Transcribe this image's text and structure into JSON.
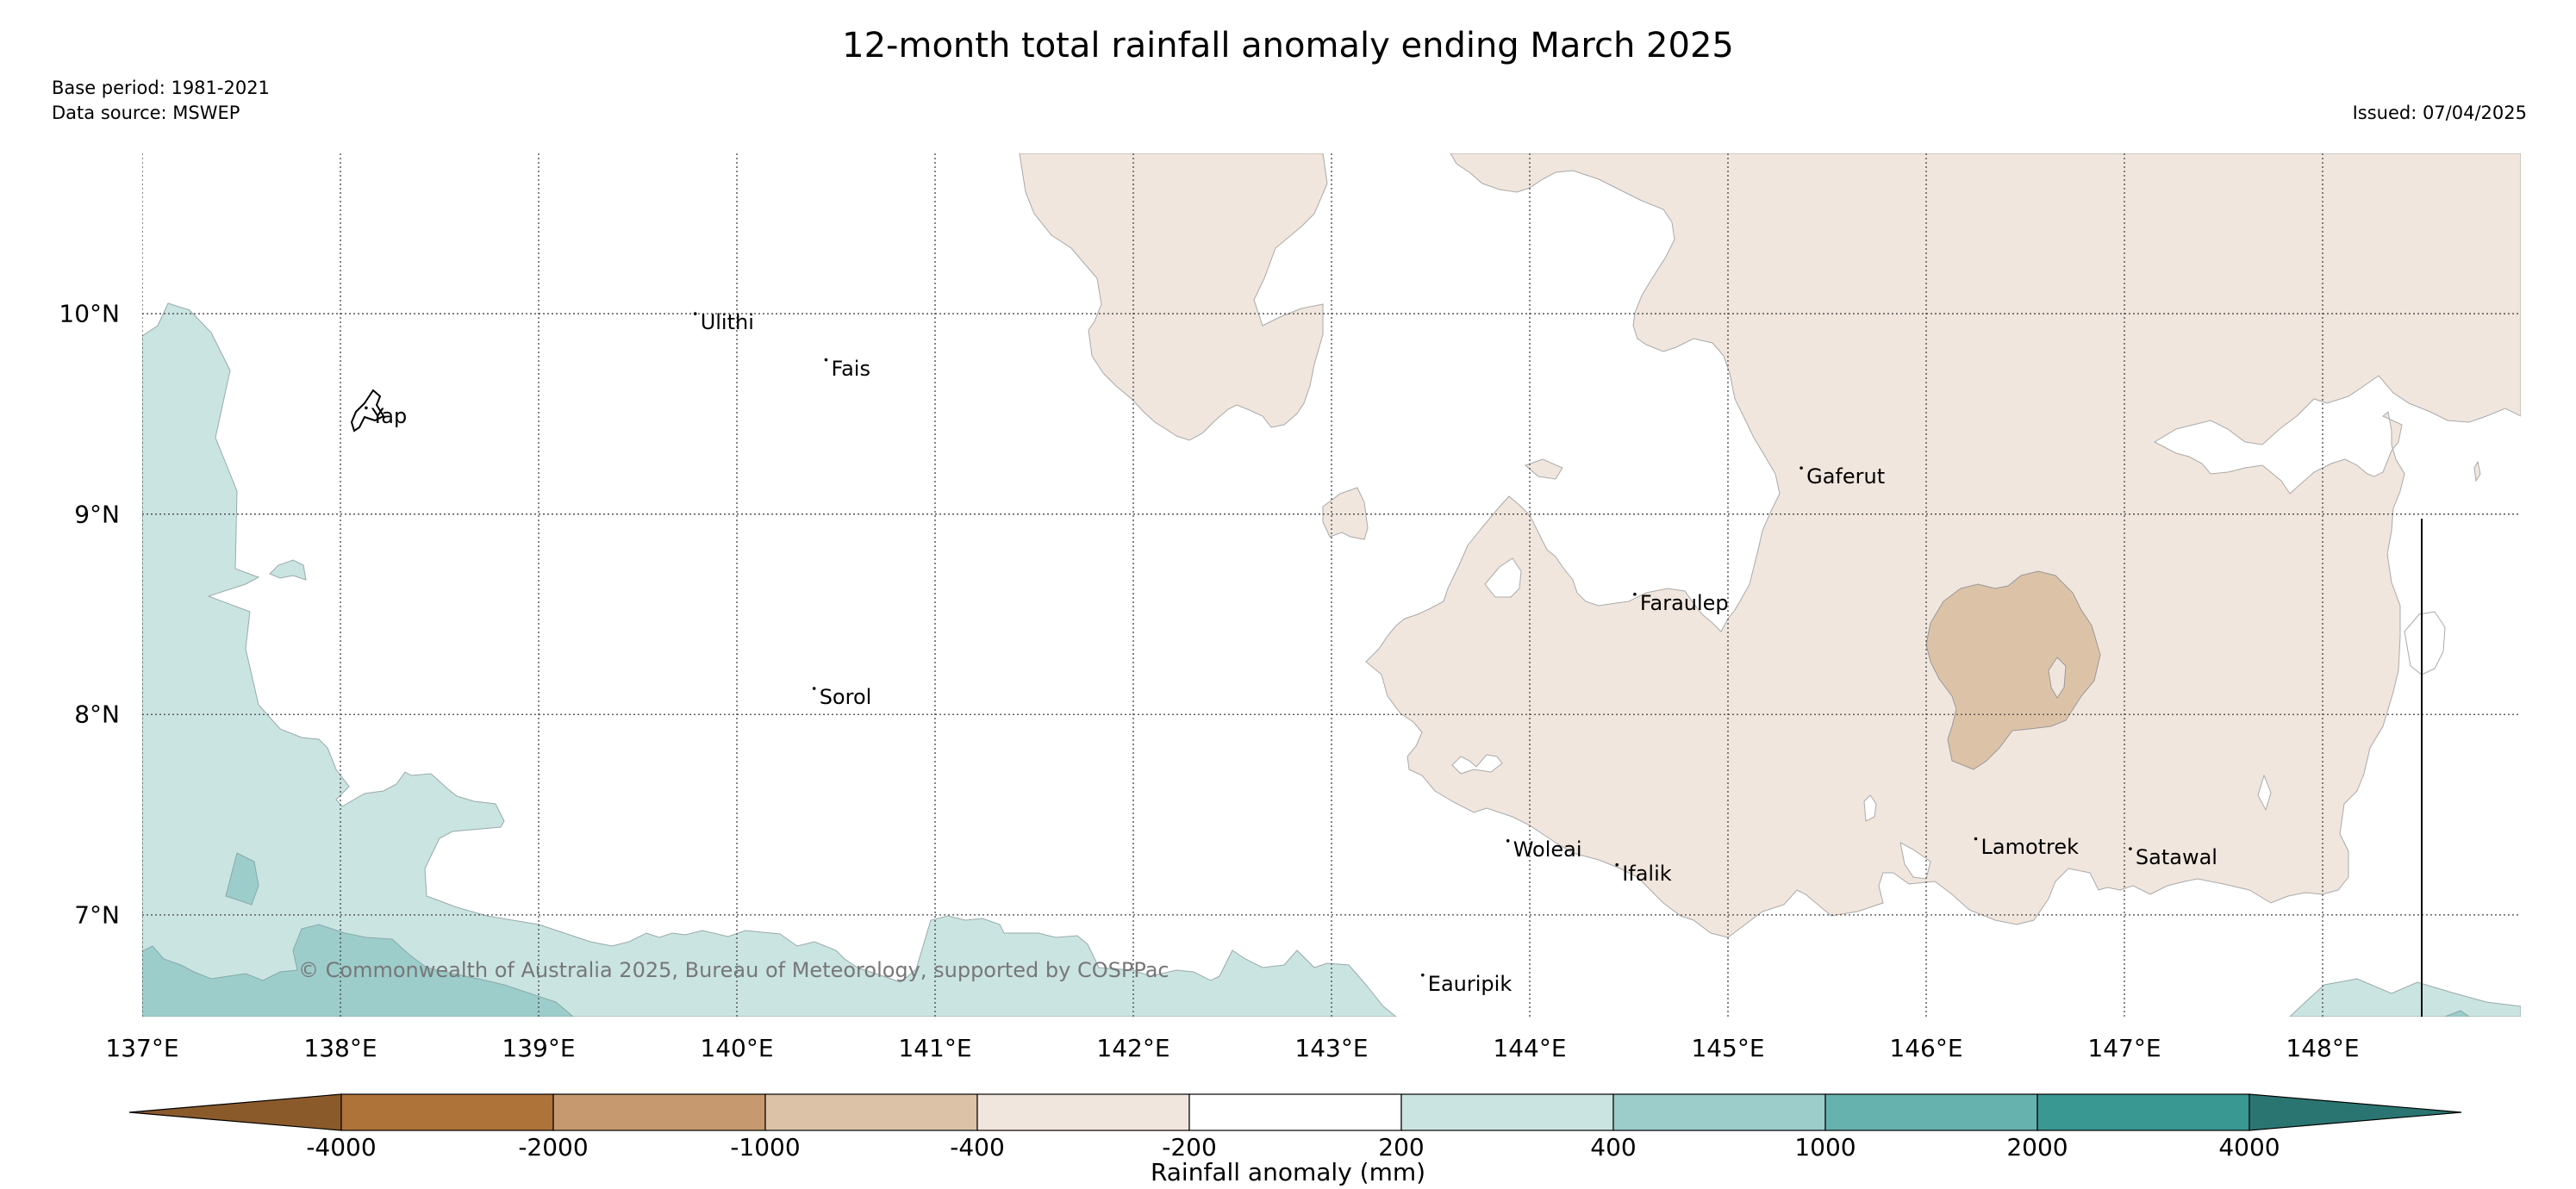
{
  "title": "12-month total rainfall anomaly ending March 2025",
  "base_period": "Base period: 1981-2021",
  "data_source": "Data source: MSWEP",
  "issued": "Issued: 07/04/2025",
  "copyright": "© Commonwealth of Australia 2025, Bureau of Meteorology, supported by COSPPac",
  "map": {
    "lon_range": [
      137,
      149
    ],
    "lat_range": [
      6.5,
      10.8
    ],
    "longitudes": [
      "137°E",
      "138°E",
      "139°E",
      "140°E",
      "141°E",
      "142°E",
      "143°E",
      "144°E",
      "145°E",
      "146°E",
      "147°E",
      "148°E"
    ],
    "latitudes": [
      "10°N",
      "9°N",
      "8°N",
      "7°N"
    ],
    "gridlines": true
  },
  "places": [
    {
      "name": "Ulithi",
      "lon": 139.79,
      "lat": 10.0
    },
    {
      "name": "Fais",
      "lon": 140.45,
      "lat": 9.77
    },
    {
      "name": "Yap",
      "lon": 138.13,
      "lat": 9.53
    },
    {
      "name": "Gaferut",
      "lon": 145.37,
      "lat": 9.23
    },
    {
      "name": "Faraulep",
      "lon": 144.53,
      "lat": 8.6
    },
    {
      "name": "Sorol",
      "lon": 140.39,
      "lat": 8.13
    },
    {
      "name": "Woleai",
      "lon": 143.89,
      "lat": 7.37
    },
    {
      "name": "Ifalik",
      "lon": 144.44,
      "lat": 7.25
    },
    {
      "name": "Lamotrek",
      "lon": 146.25,
      "lat": 7.38
    },
    {
      "name": "Satawal",
      "lon": 147.03,
      "lat": 7.33
    },
    {
      "name": "Eauripik",
      "lon": 143.46,
      "lat": 6.7
    }
  ],
  "colorbar": {
    "title": "Rainfall anomaly (mm)",
    "ticks": [
      "-4000",
      "-2000",
      "-1000",
      "-400",
      "-200",
      "200",
      "400",
      "1000",
      "2000",
      "4000"
    ],
    "colors": [
      "#8b5a2b",
      "#ae7338",
      "#c69a6e",
      "#dcc3a8",
      "#f0e6dd",
      "#ffffff",
      "#cae4e2",
      "#9ccdcb",
      "#66b2ae",
      "#3a9893",
      "#2a7571"
    ]
  }
}
